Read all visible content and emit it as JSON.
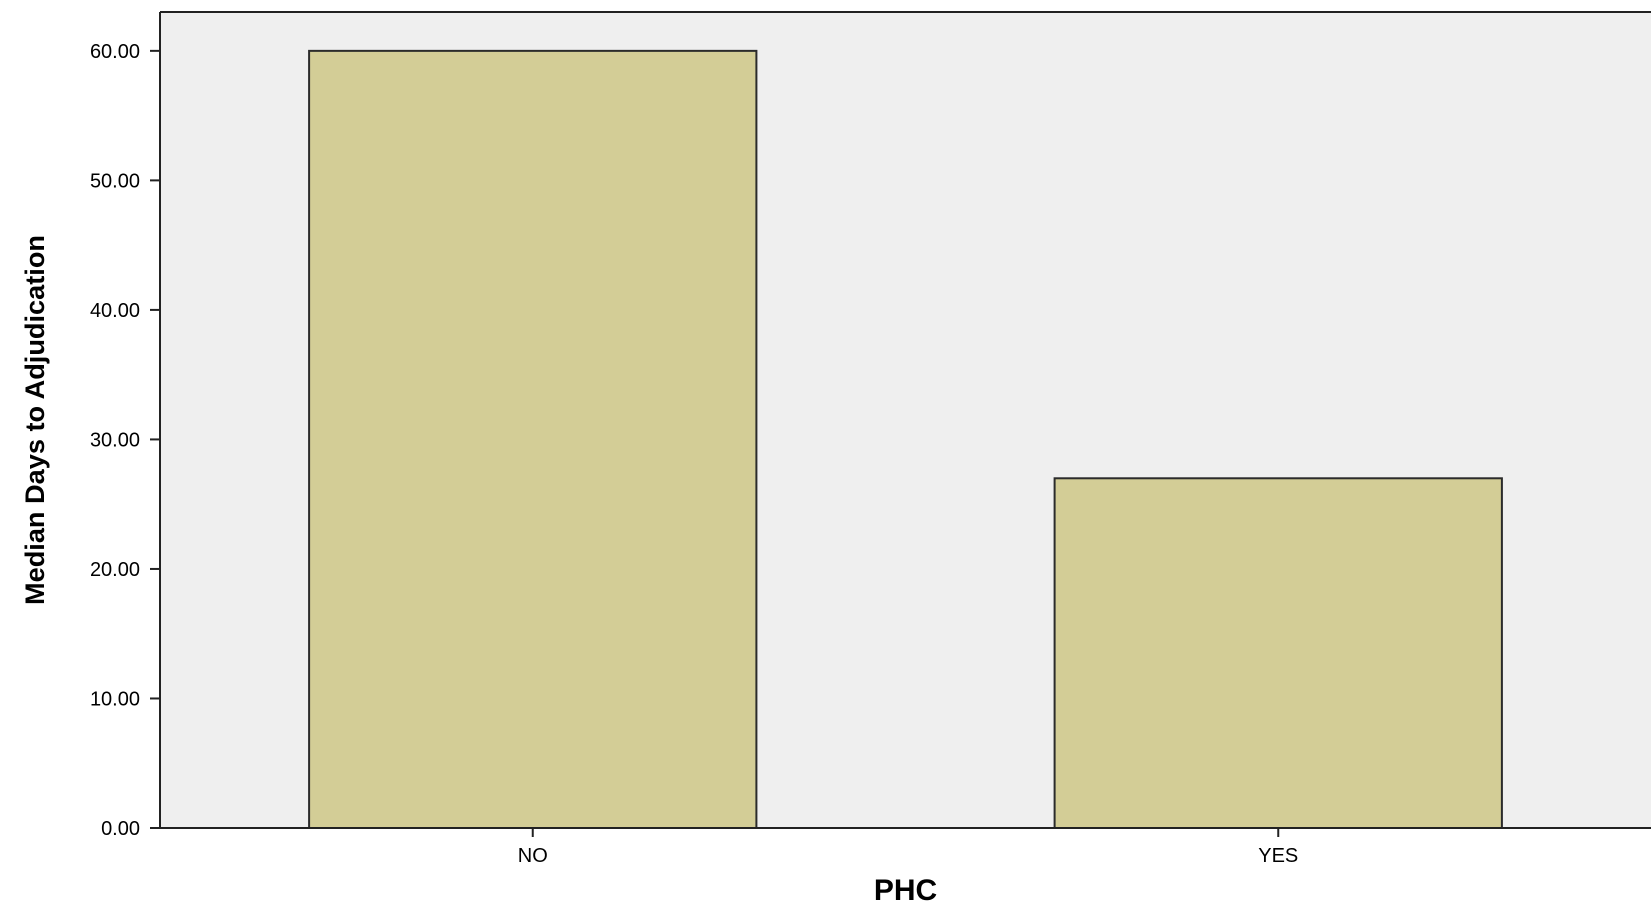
{
  "chart_data": {
    "type": "bar",
    "title": "",
    "xlabel": "PHC",
    "ylabel": "Median Days to Adjudication",
    "categories": [
      "NO",
      "YES"
    ],
    "values": [
      60,
      27
    ],
    "ylim": [
      0,
      63
    ],
    "yticks": [
      0,
      10,
      20,
      30,
      40,
      50,
      60
    ],
    "ytick_labels": [
      "0.00",
      "10.00",
      "20.00",
      "30.00",
      "40.00",
      "50.00",
      "60.00"
    ],
    "grid": false,
    "legend": "none",
    "colors": {
      "plot_background": "#efefef",
      "bar_fill": "#d3cd96",
      "bar_stroke": "#2b2b2b",
      "axis": "#222222",
      "text": "#000000"
    }
  }
}
